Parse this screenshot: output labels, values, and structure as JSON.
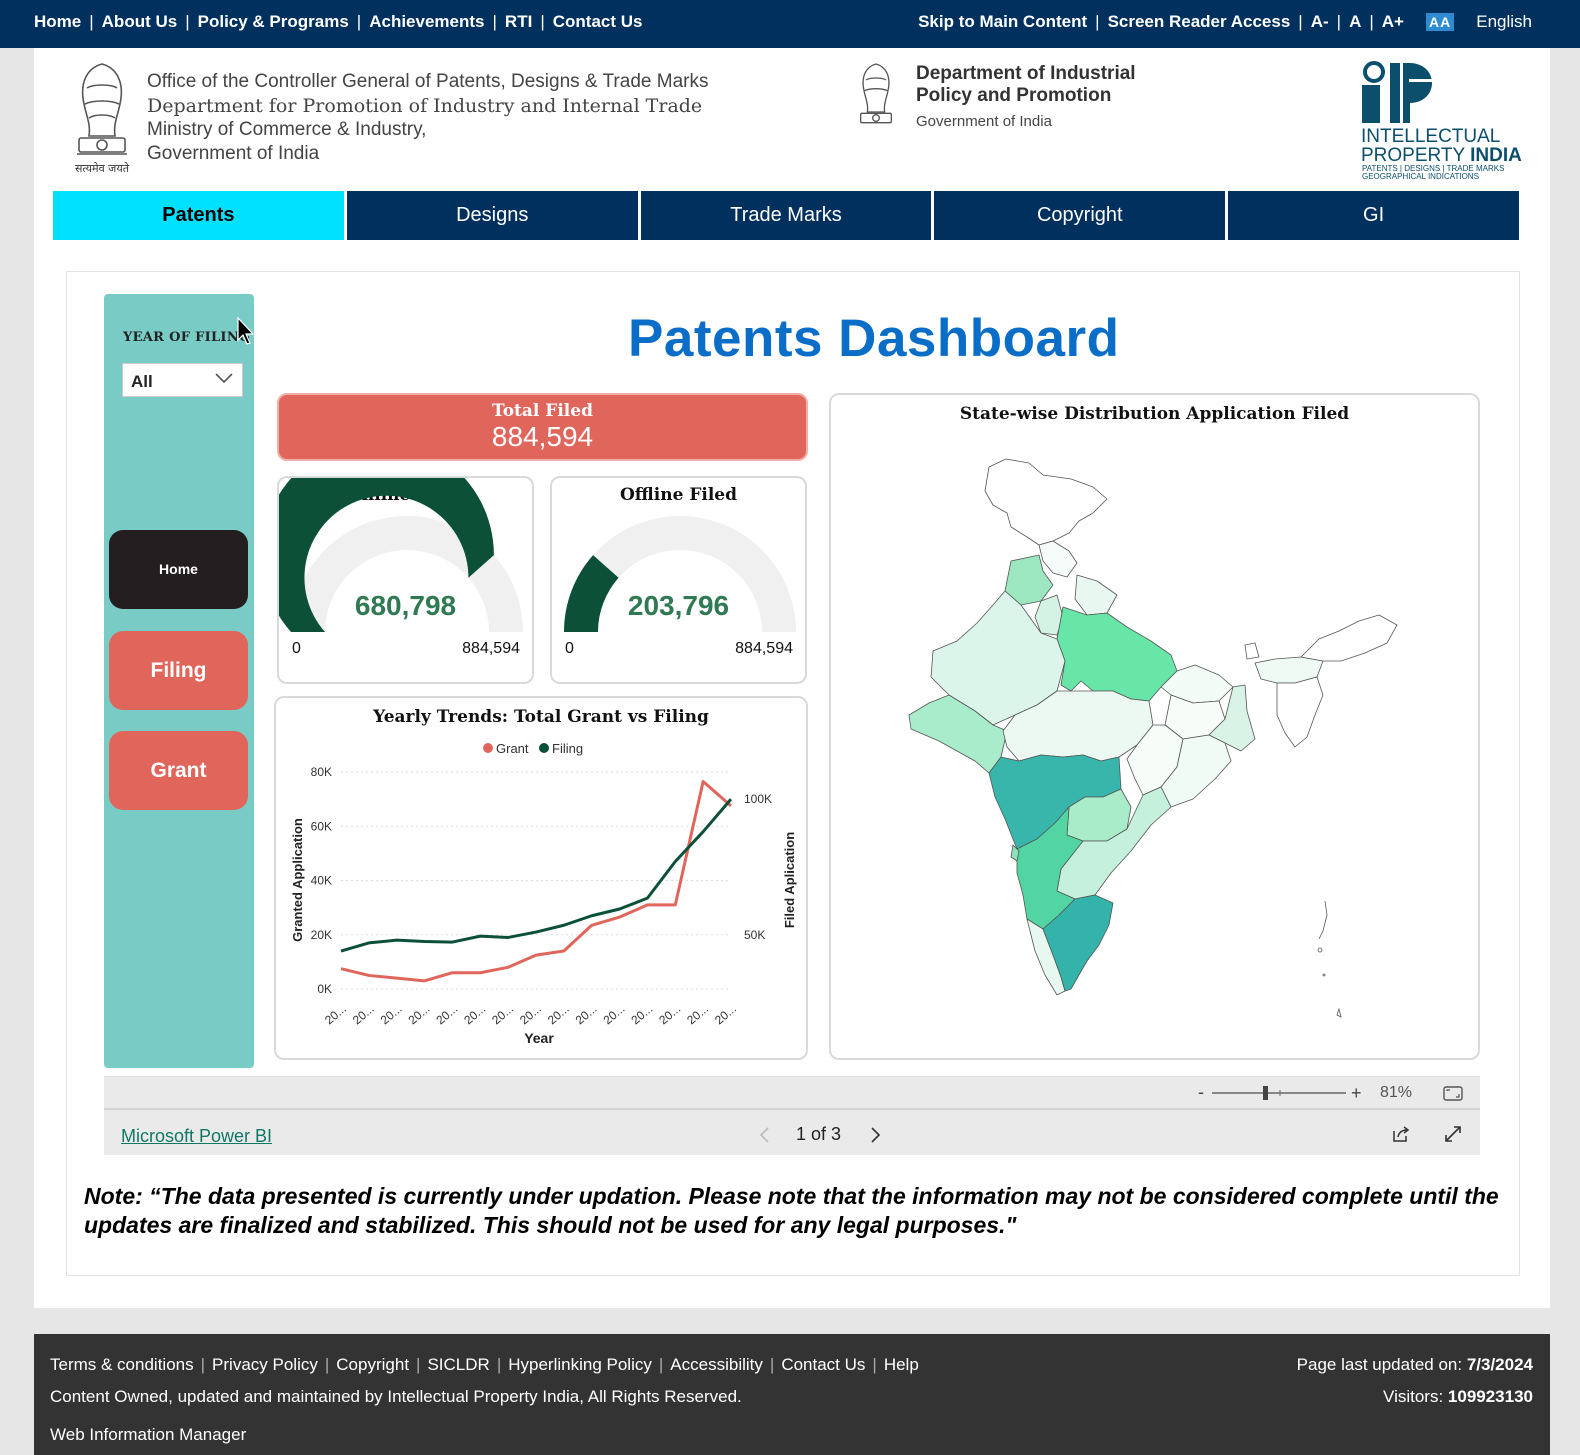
{
  "topnav": {
    "left": [
      "Home",
      "About Us",
      "Policy & Programs",
      "Achievements",
      "RTI",
      "Contact Us"
    ],
    "skip": "Skip to Main Content",
    "screen_reader": "Screen Reader Access",
    "font_small": "A-",
    "font_normal": "A",
    "font_large": "A+",
    "contrast": "AA",
    "language": "English"
  },
  "header": {
    "office_line1": "Office of the Controller General of Patents, Designs & Trade Marks",
    "office_line2": "Department for Promotion of Industry and Internal Trade",
    "office_line3": "Ministry of Commerce & Industry,",
    "office_line4": "Government of India",
    "emblem_caption": "सत्यमेव जयते",
    "dept_line1": "Department of Industrial",
    "dept_line2": "Policy and Promotion",
    "dept_line3": "Government of India",
    "ipi_line1": "INTELLECTUAL",
    "ipi_line2a": "PROPERTY ",
    "ipi_line2b": "INDIA",
    "ipi_line3": "PATENTS | DESIGNS | TRADE MARKS",
    "ipi_line4": "GEOGRAPHICAL INDICATIONS"
  },
  "tabs": [
    "Patents",
    "Designs",
    "Trade Marks",
    "Copyright",
    "GI"
  ],
  "sidebar": {
    "filter_label": "YEAR OF FILING",
    "filter_value": "All",
    "home": "Home",
    "filing": "Filing",
    "grant": "Grant"
  },
  "dashboard": {
    "title": "Patents Dashboard",
    "total_label": "Total Filed",
    "total_value": "884,594",
    "online": {
      "title": "Online Filed",
      "value": "680,798",
      "min": "0",
      "max": "884,594",
      "fraction": 0.7696
    },
    "offline": {
      "title": "Offline Filed",
      "value": "203,796",
      "min": "0",
      "max": "884,594",
      "fraction": 0.2304
    },
    "map_title": "State-wise Distribution Application Filed"
  },
  "chart_data": {
    "type": "line",
    "title": "Yearly Trends: Total Grant vs Filing",
    "xlabel": "Year",
    "ylabel": "Granted Application",
    "y2label": "Filed Aplication",
    "x": [
      "20...",
      "20...",
      "20...",
      "20...",
      "20...",
      "20...",
      "20...",
      "20...",
      "20...",
      "20...",
      "20...",
      "20...",
      "20...",
      "20...",
      "20..."
    ],
    "yticks": [
      "0K",
      "20K",
      "40K",
      "60K",
      "80K"
    ],
    "y2ticks": [
      "50K",
      "100K"
    ],
    "ylim": [
      0,
      80000
    ],
    "y2lim": [
      30000,
      110000
    ],
    "legend": "top-center",
    "series": [
      {
        "name": "Grant",
        "color": "#e0665c",
        "axis": "left",
        "values": [
          7500,
          5000,
          4000,
          3000,
          6000,
          6000,
          8000,
          12500,
          14000,
          23500,
          26500,
          31000,
          31000,
          76500,
          67500
        ]
      },
      {
        "name": "Filing",
        "color": "#0b5037",
        "axis": "right",
        "values": [
          44000,
          47000,
          48000,
          47500,
          47300,
          49500,
          49000,
          51000,
          53500,
          57000,
          59500,
          63500,
          77000,
          88000,
          100000
        ]
      }
    ]
  },
  "powerbi": {
    "zoom": "81%",
    "link": "Microsoft Power BI",
    "page": "1 of 3"
  },
  "note": "Note: “The data presented is currently under updation. Please note that the information may not be considered complete until the updates are finalized and stabilized. This should not be used for any legal purposes.\"",
  "footer": {
    "links": [
      "Terms & conditions",
      "Privacy Policy",
      "Copyright",
      "SICLDR",
      "Hyperlinking Policy",
      "Accessibility",
      "Contact Us",
      "Help"
    ],
    "owned": "Content Owned, updated and maintained by Intellectual Property India, All Rights Reserved.",
    "wim": "Web Information Manager",
    "updated_label": "Page last updated on: ",
    "updated_value": "7/3/2024",
    "visitors_label": "Visitors: ",
    "visitors_value": "109923130"
  }
}
